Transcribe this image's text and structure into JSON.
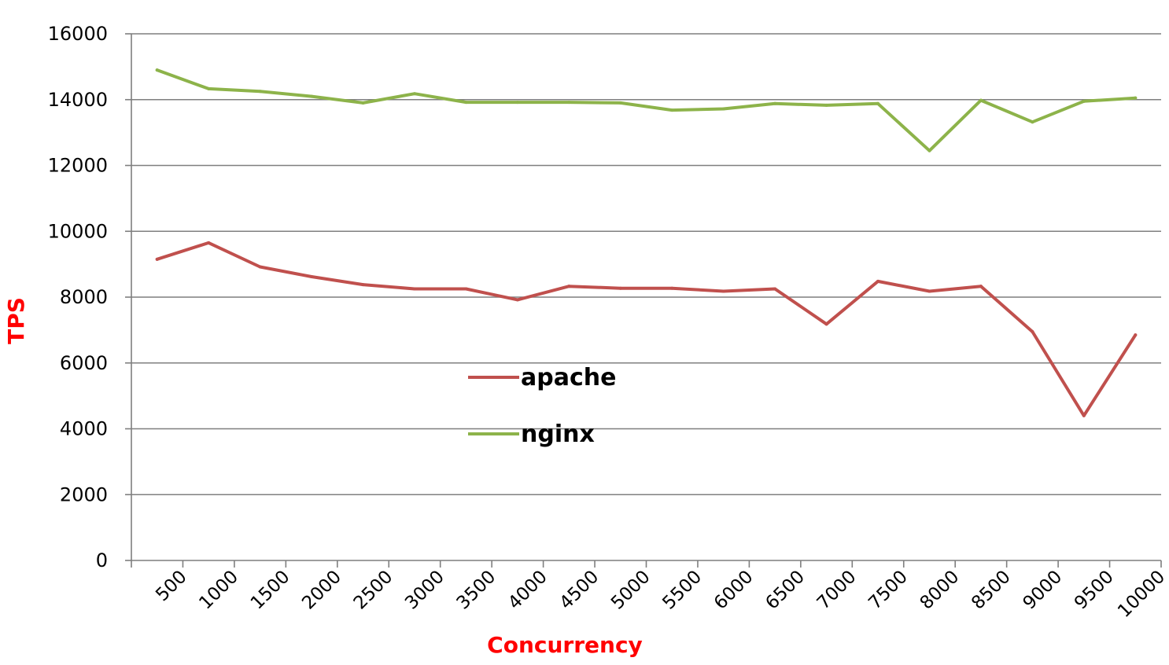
{
  "chart_data": {
    "type": "line",
    "title": "",
    "xlabel": "Concurrency",
    "ylabel": "TPS",
    "ylim": [
      0,
      16000
    ],
    "yticks": [
      0,
      2000,
      4000,
      6000,
      8000,
      10000,
      12000,
      14000,
      16000
    ],
    "categories": [
      "500",
      "1000",
      "1500",
      "2000",
      "2500",
      "3000",
      "3500",
      "4000",
      "4500",
      "5000",
      "5500",
      "6000",
      "6500",
      "7000",
      "7500",
      "8000",
      "8500",
      "9000",
      "9500",
      "10000"
    ],
    "series": [
      {
        "name": "apache",
        "color": "#c0504d",
        "values": [
          9150,
          9650,
          8920,
          8620,
          8380,
          8250,
          8250,
          7920,
          8330,
          8270,
          8270,
          8180,
          8250,
          7180,
          8480,
          8180,
          8330,
          6950,
          4400,
          6850
        ]
      },
      {
        "name": "nginx",
        "color": "#8db34a",
        "values": [
          14900,
          14330,
          14250,
          14100,
          13900,
          14180,
          13920,
          13920,
          13920,
          13900,
          13680,
          13720,
          13880,
          13830,
          13880,
          12450,
          13980,
          13320,
          13950,
          14050
        ]
      }
    ],
    "grid": true,
    "legend_position": "center",
    "label_color": "#ff0000",
    "grid_color": "#7f7f7f"
  }
}
